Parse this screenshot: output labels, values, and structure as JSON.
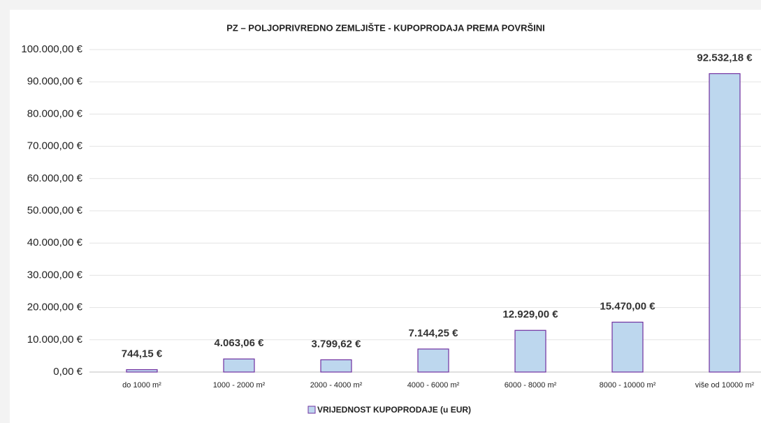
{
  "chart_data": {
    "type": "bar",
    "title": "PZ – POLJOPRIVREDNO ZEMLJIŠTE - KUPOPRODAJA PREMA POVRŠINI",
    "categories": [
      "do 1000 m²",
      "1000 - 2000 m²",
      "2000 - 4000 m²",
      "4000 - 6000 m²",
      "6000 - 8000 m²",
      "8000 - 10000 m²",
      "više od 10000 m²"
    ],
    "series": [
      {
        "name": "VRIJEDNOST KUPOPRODAJE (u EUR)",
        "color": "#bdd7ee",
        "edge_color": "#7030a0",
        "values": [
          744.15,
          4063.06,
          3799.62,
          7144.25,
          12929.0,
          15470.0,
          92532.18
        ],
        "value_labels": [
          "744,15 €",
          "4.063,06 €",
          "3.799,62 €",
          "7.144,25 €",
          "12.929,00 €",
          "15.470,00 €",
          "92.532,18 €"
        ]
      }
    ],
    "ylim": [
      0,
      100000
    ],
    "yticks": [
      {
        "value": 0,
        "label": "0,00 €"
      },
      {
        "value": 10000,
        "label": "10.000,00 €"
      },
      {
        "value": 20000,
        "label": "20.000,00 €"
      },
      {
        "value": 30000,
        "label": "30.000,00 €"
      },
      {
        "value": 40000,
        "label": "40.000,00 €"
      },
      {
        "value": 50000,
        "label": "50.000,00 €"
      },
      {
        "value": 60000,
        "label": "60.000,00 €"
      },
      {
        "value": 70000,
        "label": "70.000,00 €"
      },
      {
        "value": 80000,
        "label": "80.000,00 €"
      },
      {
        "value": 90000,
        "label": "90.000,00 €"
      },
      {
        "value": 100000,
        "label": "100.000,00 €"
      }
    ],
    "grid": true,
    "legend": "bottom"
  }
}
